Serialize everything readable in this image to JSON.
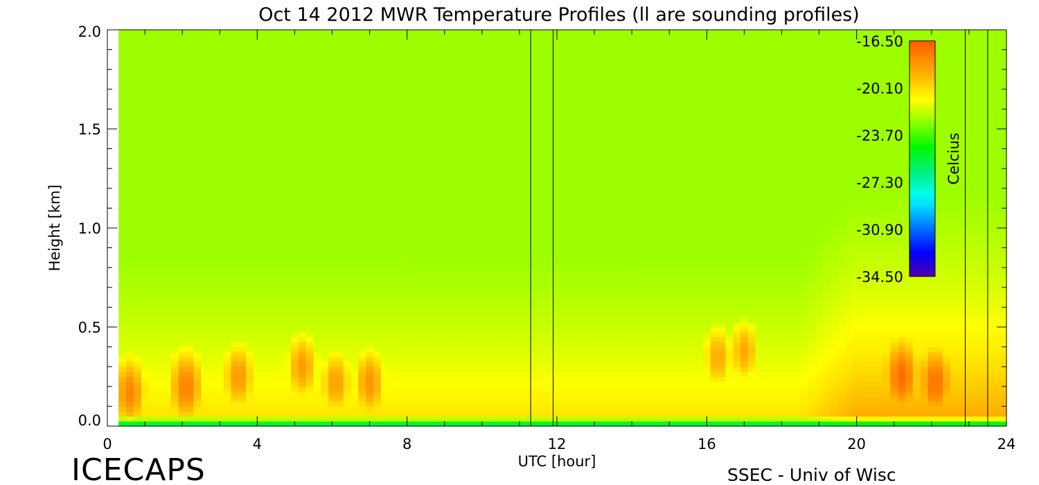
{
  "chart_data": {
    "type": "heatmap",
    "title": "Oct 14 2012 MWR Temperature Profiles (ll are sounding profiles)",
    "xlabel": "UTC [hour]",
    "ylabel": "Height [km]",
    "xlim": [
      0,
      24
    ],
    "ylim": [
      0,
      2
    ],
    "x_ticks": [
      "0",
      "4",
      "8",
      "12",
      "16",
      "20",
      "24"
    ],
    "y_ticks": [
      "0.0",
      "0.5",
      "1.0",
      "1.5",
      "2.0"
    ],
    "data_x_range": [
      0.3,
      24
    ],
    "colorbar": {
      "label": "Celcius",
      "range": [
        -34.5,
        -16.5
      ],
      "ticks": [
        "-16.50",
        "-20.10",
        "-23.70",
        "-27.30",
        "-30.90",
        "-34.50"
      ]
    },
    "sounding_profile_times": [
      11.3,
      11.9,
      22.9,
      23.5
    ],
    "warm_layer_cores": [
      {
        "x": 0.6,
        "y": 0.17,
        "value": -17.8
      },
      {
        "x": 2.1,
        "y": 0.2,
        "value": -17.6
      },
      {
        "x": 3.5,
        "y": 0.25,
        "value": -18.3
      },
      {
        "x": 5.2,
        "y": 0.3,
        "value": -18.4
      },
      {
        "x": 6.1,
        "y": 0.22,
        "value": -18.5
      },
      {
        "x": 7.0,
        "y": 0.22,
        "value": -18.2
      },
      {
        "x": 16.3,
        "y": 0.35,
        "value": -18.8
      },
      {
        "x": 17.0,
        "y": 0.38,
        "value": -18.8
      },
      {
        "x": 21.2,
        "y": 0.25,
        "value": -17.0
      },
      {
        "x": 22.1,
        "y": 0.22,
        "value": -17.2
      }
    ],
    "upper_level_temperature": -23.5,
    "surface_layer_temperature": -27.0
  },
  "branding": {
    "project": "ICECAPS",
    "credit": "SSEC - Univ of Wisc"
  }
}
